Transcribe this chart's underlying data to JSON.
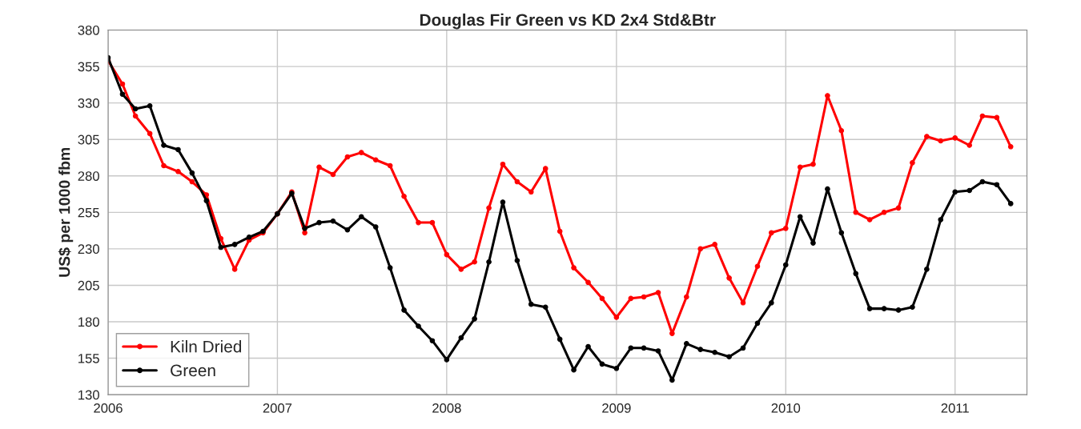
{
  "chart_data": {
    "type": "line",
    "title": "Douglas Fir Green vs KD 2x4 Std&Btr",
    "ylabel": "US$ per 1000 fbm",
    "x": [
      "2006-01",
      "2006-02",
      "2006-03",
      "2006-04",
      "2006-05",
      "2006-06",
      "2006-07",
      "2006-08",
      "2006-09",
      "2006-10",
      "2006-11",
      "2006-12",
      "2007-01",
      "2007-02",
      "2007-03",
      "2007-04",
      "2007-05",
      "2007-06",
      "2007-07",
      "2007-08",
      "2007-09",
      "2007-10",
      "2007-11",
      "2007-12",
      "2008-01",
      "2008-02",
      "2008-03",
      "2008-04",
      "2008-05",
      "2008-06",
      "2008-07",
      "2008-08",
      "2008-09",
      "2008-10",
      "2008-11",
      "2008-12",
      "2009-01",
      "2009-02",
      "2009-03",
      "2009-04",
      "2009-05",
      "2009-06",
      "2009-07",
      "2009-08",
      "2009-09",
      "2009-10",
      "2009-11",
      "2009-12",
      "2010-01",
      "2010-02",
      "2010-03",
      "2010-04",
      "2010-05",
      "2010-06",
      "2010-07",
      "2010-08",
      "2010-09",
      "2010-10",
      "2010-11",
      "2010-12",
      "2011-01",
      "2011-02",
      "2011-03",
      "2011-04",
      "2011-05"
    ],
    "series": [
      {
        "name": "Kiln Dried",
        "color": "#ff0000",
        "values": [
          359,
          343,
          321,
          309,
          287,
          283,
          276,
          267,
          237,
          216,
          236,
          241,
          254,
          269,
          241,
          286,
          281,
          293,
          296,
          291,
          287,
          266,
          248,
          248,
          226,
          216,
          221,
          258,
          288,
          276,
          269,
          285,
          242,
          217,
          207,
          196,
          183,
          196,
          197,
          200,
          172,
          197,
          230,
          233,
          210,
          193,
          218,
          241,
          244,
          286,
          288,
          335,
          311,
          255,
          250,
          255,
          258,
          289,
          307,
          304,
          306,
          301,
          321,
          320,
          300
        ]
      },
      {
        "name": "Green",
        "color": "#000000",
        "values": [
          361,
          336,
          326,
          328,
          301,
          298,
          282,
          263,
          231,
          233,
          238,
          242,
          254,
          268,
          244,
          248,
          249,
          243,
          252,
          245,
          217,
          188,
          177,
          167,
          154,
          169,
          182,
          221,
          262,
          222,
          192,
          190,
          168,
          147,
          163,
          151,
          148,
          162,
          162,
          160,
          140,
          165,
          161,
          159,
          156,
          162,
          179,
          193,
          219,
          252,
          234,
          271,
          241,
          213,
          189,
          189,
          188,
          190,
          216,
          250,
          269,
          270,
          276,
          274,
          261
        ]
      }
    ],
    "xlim": [
      "2006-01-01",
      "2011-06-05"
    ],
    "xticks": [
      "2006",
      "2007",
      "2008",
      "2009",
      "2010",
      "2011"
    ],
    "ylim": [
      130,
      380
    ],
    "yticks": [
      130,
      155,
      180,
      205,
      230,
      255,
      280,
      305,
      330,
      355,
      380
    ],
    "grid": true,
    "legend": "bottom left",
    "marker": "circle",
    "line_style": "solid"
  }
}
